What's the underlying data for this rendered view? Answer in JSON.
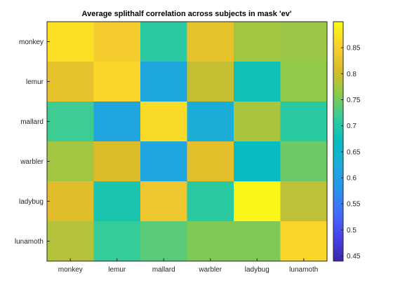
{
  "chart_data": {
    "type": "heatmap",
    "title": "Average splithalf correlation across subjects in mask 'ev'",
    "xlabel": "",
    "ylabel": "",
    "x_categories": [
      "monkey",
      "lemur",
      "mallard",
      "warbler",
      "ladybug",
      "lunamoth"
    ],
    "y_categories": [
      "monkey",
      "lemur",
      "mallard",
      "warbler",
      "ladybug",
      "lunamoth"
    ],
    "values": [
      [
        0.87,
        0.845,
        0.705,
        0.825,
        0.775,
        0.77
      ],
      [
        0.825,
        0.86,
        0.615,
        0.795,
        0.68,
        0.765
      ],
      [
        0.72,
        0.61,
        0.865,
        0.625,
        0.78,
        0.705
      ],
      [
        0.775,
        0.81,
        0.61,
        0.82,
        0.665,
        0.745
      ],
      [
        0.815,
        0.69,
        0.835,
        0.705,
        0.895,
        0.79
      ],
      [
        0.785,
        0.715,
        0.735,
        0.755,
        0.755,
        0.86
      ]
    ],
    "colorbar": {
      "limits": [
        0.44,
        0.9
      ],
      "ticks": [
        0.45,
        0.5,
        0.55,
        0.6,
        0.65,
        0.7,
        0.75,
        0.8,
        0.85
      ],
      "tick_labels": [
        "0.45",
        "0.5",
        "0.55",
        "0.6",
        "0.65",
        "0.7",
        "0.75",
        "0.8",
        "0.85"
      ],
      "colormap": "parula"
    },
    "grid": false
  }
}
